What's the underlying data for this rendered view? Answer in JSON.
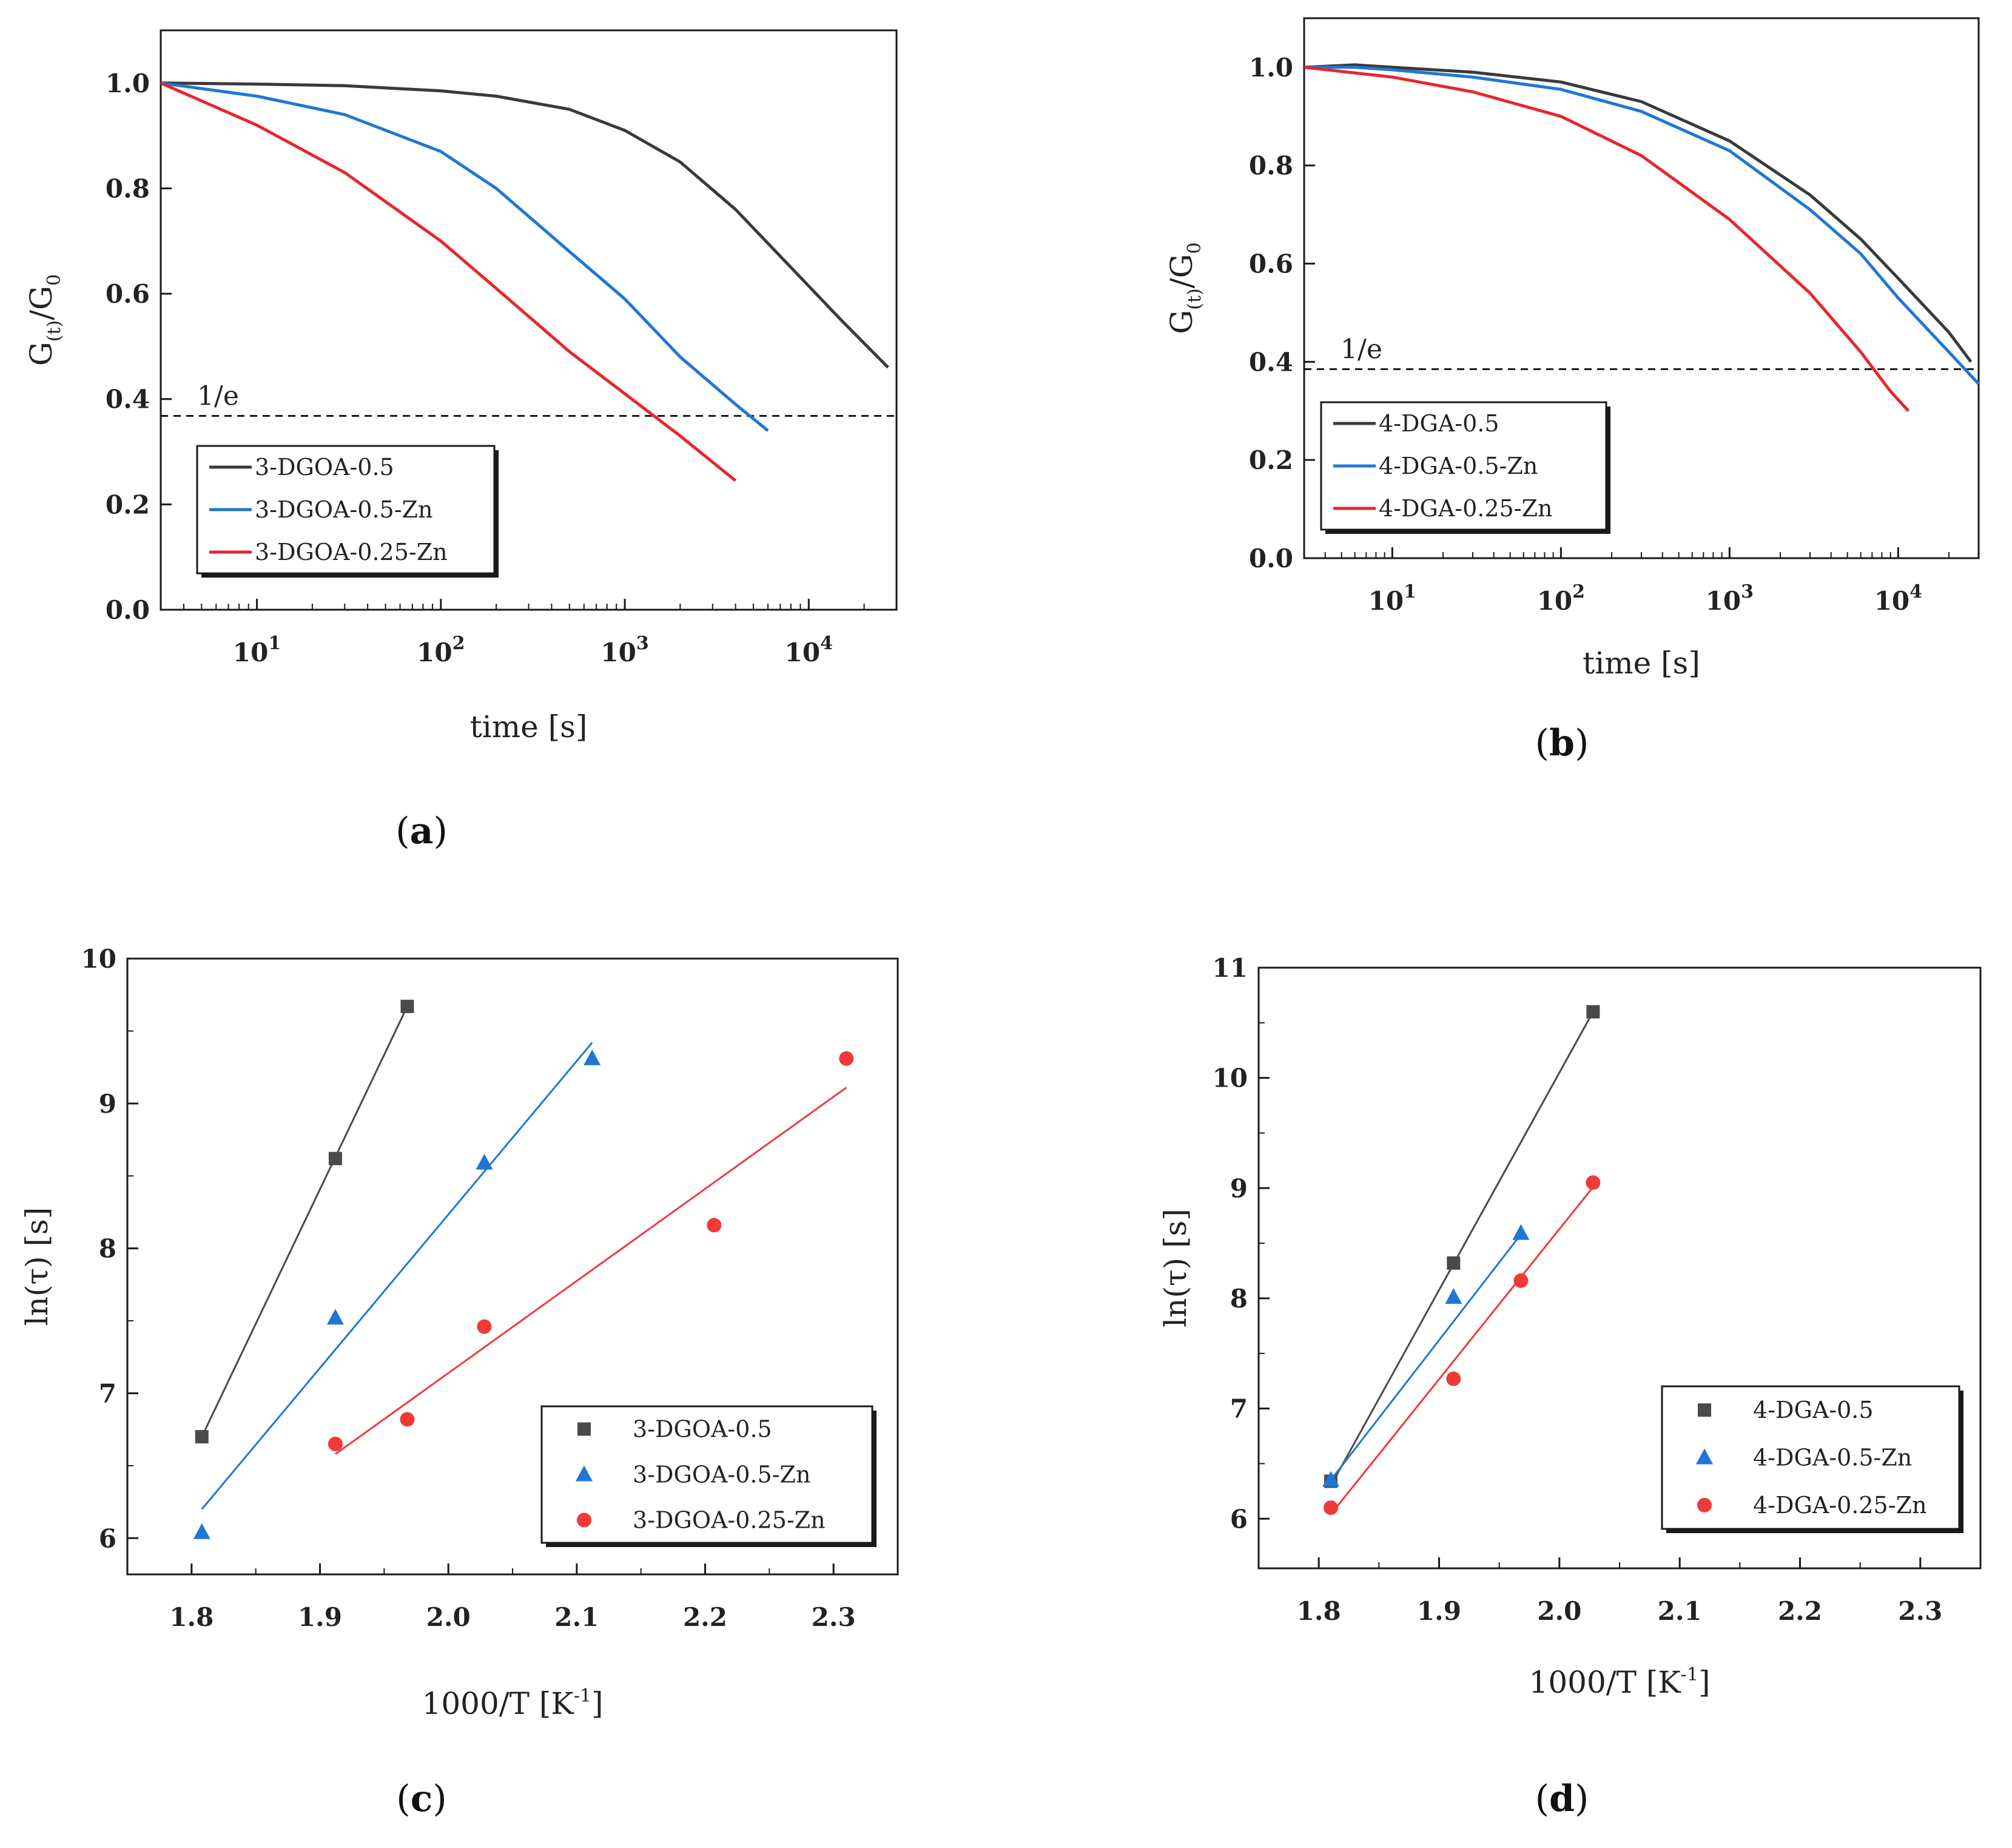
{
  "chart_data": [
    {
      "id": "a",
      "type": "line",
      "caption": "a",
      "xscale": "log",
      "xlabel": "time [s]",
      "ylabel": "G(t)/G0",
      "xlim": [
        3,
        30000
      ],
      "ylim": [
        0.0,
        1.1
      ],
      "xticks": [
        10,
        100,
        1000,
        10000
      ],
      "xtick_labels": [
        {
          "base": "10",
          "exp": "1"
        },
        {
          "base": "10",
          "exp": "2"
        },
        {
          "base": "10",
          "exp": "3"
        },
        {
          "base": "10",
          "exp": "4"
        }
      ],
      "yticks": [
        0.0,
        0.2,
        0.4,
        0.6,
        0.8,
        1.0
      ],
      "ytick_labels": [
        "0.0",
        "0.2",
        "0.4",
        "0.6",
        "0.8",
        "1.0"
      ],
      "reference_line": {
        "y": 0.368,
        "label": "1/e"
      },
      "legend_position": "lower-left",
      "series": [
        {
          "name": "3-DGOA-0.5",
          "color": "#3a3a3a",
          "x": [
            3,
            10,
            30,
            100,
            200,
            500,
            1000,
            2000,
            4000,
            8000,
            15000,
            27000
          ],
          "y": [
            1.0,
            0.998,
            0.995,
            0.985,
            0.975,
            0.95,
            0.91,
            0.85,
            0.76,
            0.65,
            0.55,
            0.46
          ]
        },
        {
          "name": "3-DGOA-0.5-Zn",
          "color": "#1f77d4",
          "x": [
            3,
            10,
            30,
            100,
            200,
            500,
            1000,
            2000,
            4000,
            6000
          ],
          "y": [
            1.0,
            0.975,
            0.94,
            0.87,
            0.8,
            0.68,
            0.59,
            0.48,
            0.39,
            0.34
          ]
        },
        {
          "name": "3-DGOA-0.25-Zn",
          "color": "#e8262d",
          "x": [
            3,
            10,
            30,
            100,
            200,
            500,
            1000,
            2000,
            4000
          ],
          "y": [
            1.0,
            0.92,
            0.83,
            0.7,
            0.61,
            0.49,
            0.41,
            0.33,
            0.245
          ]
        }
      ]
    },
    {
      "id": "b",
      "type": "line",
      "caption": "b",
      "xscale": "log",
      "xlabel": "time [s]",
      "ylabel": "G(t)/G0",
      "xlim": [
        3,
        30000
      ],
      "ylim": [
        0.0,
        1.1
      ],
      "xticks": [
        10,
        100,
        1000,
        10000
      ],
      "xtick_labels": [
        {
          "base": "10",
          "exp": "1"
        },
        {
          "base": "10",
          "exp": "2"
        },
        {
          "base": "10",
          "exp": "3"
        },
        {
          "base": "10",
          "exp": "4"
        }
      ],
      "yticks": [
        0.0,
        0.2,
        0.4,
        0.6,
        0.8,
        1.0
      ],
      "ytick_labels": [
        "0.0",
        "0.2",
        "0.4",
        "0.6",
        "0.8",
        "1.0"
      ],
      "reference_line": {
        "y": 0.385,
        "label": "1/e"
      },
      "legend_position": "lower-left",
      "series": [
        {
          "name": "4-DGA-0.5",
          "color": "#3a3a3a",
          "x": [
            3,
            6,
            10,
            30,
            100,
            300,
            1000,
            3000,
            6000,
            10000,
            20000,
            27000
          ],
          "y": [
            1.0,
            1.005,
            1.0,
            0.99,
            0.97,
            0.93,
            0.85,
            0.74,
            0.65,
            0.57,
            0.46,
            0.4
          ]
        },
        {
          "name": "4-DGA-0.5-Zn",
          "color": "#1f77d4",
          "x": [
            3,
            6,
            10,
            30,
            100,
            300,
            1000,
            3000,
            6000,
            10000,
            20000,
            30000
          ],
          "y": [
            1.0,
            1.0,
            0.995,
            0.98,
            0.955,
            0.91,
            0.83,
            0.71,
            0.62,
            0.53,
            0.42,
            0.355
          ]
        },
        {
          "name": "4-DGA-0.25-Zn",
          "color": "#e8262d",
          "x": [
            3,
            10,
            30,
            100,
            300,
            1000,
            3000,
            6000,
            9000,
            11500
          ],
          "y": [
            1.0,
            0.98,
            0.95,
            0.9,
            0.82,
            0.69,
            0.54,
            0.42,
            0.34,
            0.3
          ]
        }
      ]
    },
    {
      "id": "c",
      "type": "scatter",
      "caption": "c",
      "xlabel": "1000/T [K",
      "xlabel_sup": "-1",
      "xlabel_close": "]",
      "ylabel": "ln(τ) [s]",
      "xlim": [
        1.75,
        2.35
      ],
      "ylim": [
        5.75,
        10.0
      ],
      "xticks": [
        1.8,
        1.9,
        2.0,
        2.1,
        2.2,
        2.3
      ],
      "xtick_labels": [
        "1.8",
        "1.9",
        "2.0",
        "2.1",
        "2.2",
        "2.3"
      ],
      "yticks": [
        6,
        7,
        8,
        9,
        10
      ],
      "ytick_labels": [
        "6",
        "7",
        "8",
        "9",
        "10"
      ],
      "legend_position": "lower-right",
      "series": [
        {
          "name": "3-DGOA-0.5",
          "color": "#4a4a4a",
          "marker": "square",
          "x": [
            1.808,
            1.912,
            1.968
          ],
          "y": [
            6.7,
            8.62,
            9.67
          ],
          "fit": {
            "x": [
              1.808,
              1.968
            ],
            "y": [
              6.7,
              9.67
            ]
          }
        },
        {
          "name": "3-DGOA-0.5-Zn",
          "color": "#1f77d4",
          "marker": "triangle",
          "x": [
            1.808,
            1.912,
            2.028,
            2.112
          ],
          "y": [
            6.04,
            7.52,
            8.59,
            9.31
          ],
          "fit": {
            "x": [
              1.808,
              2.112
            ],
            "y": [
              6.2,
              9.42
            ]
          }
        },
        {
          "name": "3-DGOA-0.25-Zn",
          "color": "#f03a3a",
          "marker": "circle",
          "x": [
            1.912,
            1.968,
            2.028,
            2.207,
            2.31
          ],
          "y": [
            6.65,
            6.82,
            7.46,
            8.16,
            9.31
          ],
          "fit": {
            "x": [
              1.912,
              2.31
            ],
            "y": [
              6.58,
              9.11
            ]
          }
        }
      ]
    },
    {
      "id": "d",
      "type": "scatter",
      "caption": "d",
      "xlabel": "1000/T [K",
      "xlabel_sup": "-1",
      "xlabel_close": "]",
      "ylabel": "ln(τ) [s]",
      "xlim": [
        1.75,
        2.35
      ],
      "ylim": [
        5.55,
        11.0
      ],
      "xticks": [
        1.8,
        1.9,
        2.0,
        2.1,
        2.2,
        2.3
      ],
      "xtick_labels": [
        "1.8",
        "1.9",
        "2.0",
        "2.1",
        "2.2",
        "2.3"
      ],
      "yticks": [
        6,
        7,
        8,
        9,
        10,
        11
      ],
      "ytick_labels": [
        "6",
        "7",
        "8",
        "9",
        "10",
        "11"
      ],
      "legend_position": "lower-right",
      "series": [
        {
          "name": "4-DGA-0.5",
          "color": "#4a4a4a",
          "marker": "square",
          "x": [
            1.81,
            1.912,
            2.028
          ],
          "y": [
            6.34,
            8.32,
            10.6
          ],
          "fit": {
            "x": [
              1.81,
              2.028
            ],
            "y": [
              6.3,
              10.6
            ]
          }
        },
        {
          "name": "4-DGA-0.5-Zn",
          "color": "#1f77d4",
          "marker": "triangle",
          "x": [
            1.81,
            1.912,
            1.968
          ],
          "y": [
            6.35,
            8.01,
            8.59
          ],
          "fit": {
            "x": [
              1.81,
              1.968
            ],
            "y": [
              6.35,
              8.58
            ]
          }
        },
        {
          "name": "4-DGA-0.25-Zn",
          "color": "#f03a3a",
          "marker": "circle",
          "x": [
            1.81,
            1.912,
            1.968,
            2.028
          ],
          "y": [
            6.1,
            7.27,
            8.16,
            9.05
          ],
          "fit": {
            "x": [
              1.81,
              2.028
            ],
            "y": [
              6.04,
              9.01
            ]
          }
        }
      ]
    }
  ]
}
